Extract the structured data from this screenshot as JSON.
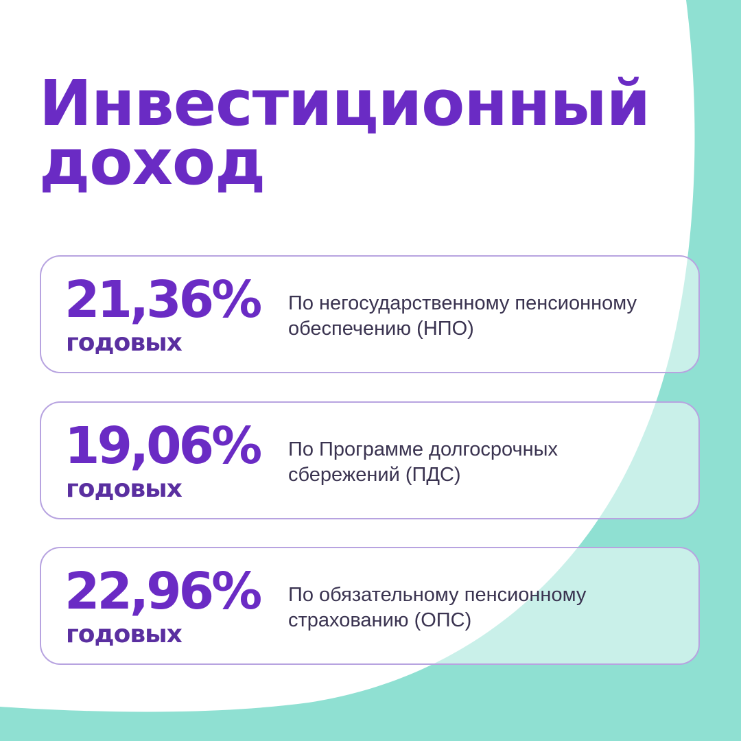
{
  "title": {
    "line1": "Инвестиционный",
    "line2": "доход"
  },
  "colors": {
    "background": "#8fe0d2",
    "foreground_shape": "#ffffff",
    "title": "#6a2bc4",
    "card_border": "#b7a3e0",
    "description": "#3a3350"
  },
  "cards": [
    {
      "rate": "21,36%",
      "unit": "годовых",
      "desc_line1": "По негосударственному пенсионному",
      "desc_line2": "обеспечению (НПО)"
    },
    {
      "rate": "19,06%",
      "unit": "годовых",
      "desc_line1": "По Программе долгосрочных",
      "desc_line2": "сбережений (ПДС)"
    },
    {
      "rate": "22,96%",
      "unit": "годовых",
      "desc_line1": "По обязательному пенсионному",
      "desc_line2": "страхованию (ОПС)"
    }
  ]
}
